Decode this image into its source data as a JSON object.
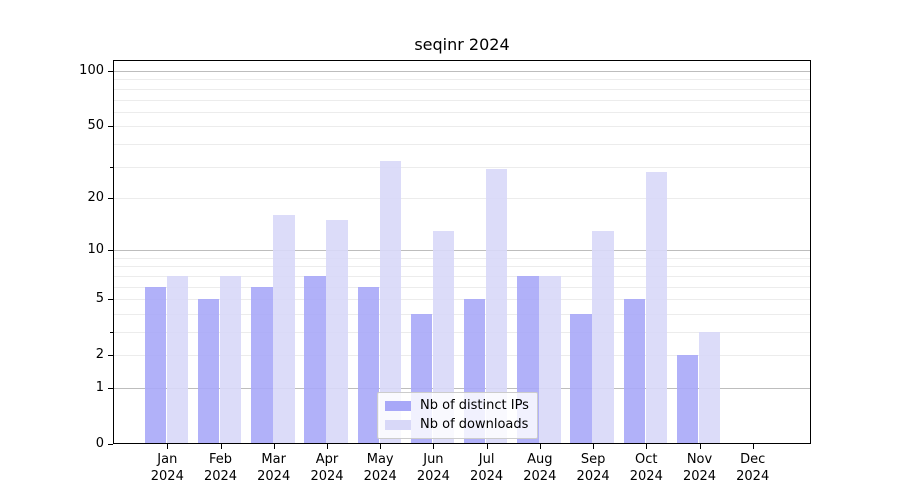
{
  "chart_data": {
    "type": "bar",
    "orientation": "vertical",
    "grouped": true,
    "title": "seqinr 2024",
    "categories": [
      "Jan",
      "Feb",
      "Mar",
      "Apr",
      "May",
      "Jun",
      "Jul",
      "Aug",
      "Sep",
      "Oct",
      "Nov",
      "Dec"
    ],
    "year_label": "2024",
    "series": [
      {
        "name": "Nb of distinct IPs",
        "color": "#a8a8f8",
        "values": [
          6,
          5,
          6,
          7,
          6,
          4,
          5,
          7,
          4,
          5,
          2,
          0
        ]
      },
      {
        "name": "Nb of downloads",
        "color": "#d8d8f8",
        "values": [
          7,
          7,
          16,
          15,
          32,
          13,
          29,
          7,
          13,
          28,
          3,
          0
        ]
      }
    ],
    "xlabel": "",
    "ylabel": "",
    "yscale": "log1p",
    "ylim": [
      0,
      100
    ],
    "yticks": [
      0,
      1,
      2,
      5,
      10,
      20,
      50,
      100
    ],
    "minor_yticks": [
      3,
      30
    ],
    "gridlines": {
      "major": [
        1,
        10,
        100
      ],
      "minor": [
        2,
        3,
        4,
        5,
        6,
        7,
        8,
        9,
        20,
        30,
        40,
        50,
        60,
        70,
        80,
        90
      ]
    },
    "grid": "on",
    "legend_position": "bottom-center",
    "colors": {
      "axis": "#000000",
      "gridline_minor": "#ececec",
      "gridline_major": "#bdbdbd",
      "background": "#ffffff"
    }
  }
}
